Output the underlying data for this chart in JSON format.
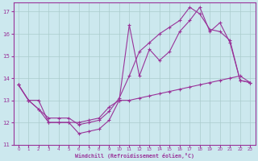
{
  "xlabel": "Windchill (Refroidissement éolien,°C)",
  "bg_color": "#cce8ee",
  "grid_color": "#aacccc",
  "line_color": "#993399",
  "spine_color": "#993399",
  "xlim": [
    -0.5,
    23.5
  ],
  "ylim": [
    11,
    17.4
  ],
  "xticks": [
    0,
    1,
    2,
    3,
    4,
    5,
    6,
    7,
    8,
    9,
    10,
    11,
    12,
    13,
    14,
    15,
    16,
    17,
    18,
    19,
    20,
    21,
    22,
    23
  ],
  "yticks": [
    11,
    12,
    13,
    14,
    15,
    16,
    17
  ],
  "line1_x": [
    0,
    1,
    2,
    3,
    4,
    5,
    6,
    7,
    8,
    9,
    10,
    11,
    12,
    13,
    14,
    15,
    16,
    17,
    18,
    19,
    20,
    21,
    22,
    23
  ],
  "line1_y": [
    13.7,
    13.0,
    12.6,
    12.0,
    12.0,
    12.0,
    11.5,
    11.6,
    11.7,
    12.1,
    13.0,
    16.4,
    14.1,
    15.3,
    14.8,
    15.2,
    16.1,
    16.6,
    17.2,
    16.1,
    16.5,
    15.6,
    13.9,
    13.8
  ],
  "line2_x": [
    0,
    1,
    2,
    3,
    4,
    5,
    6,
    7,
    8,
    9,
    10,
    11,
    12,
    13,
    14,
    15,
    16,
    17,
    18,
    19,
    20,
    21,
    22,
    23
  ],
  "line2_y": [
    13.7,
    13.0,
    13.0,
    12.0,
    12.0,
    12.0,
    12.0,
    12.1,
    12.2,
    12.7,
    13.0,
    13.0,
    13.1,
    13.2,
    13.3,
    13.4,
    13.5,
    13.6,
    13.7,
    13.8,
    13.9,
    14.0,
    14.1,
    13.8
  ],
  "line3_x": [
    0,
    1,
    2,
    3,
    4,
    5,
    6,
    7,
    8,
    9,
    10,
    11,
    12,
    13,
    14,
    15,
    16,
    17,
    18,
    19,
    20,
    21,
    22,
    23
  ],
  "line3_y": [
    13.7,
    13.0,
    12.6,
    12.2,
    12.2,
    12.2,
    11.9,
    12.0,
    12.1,
    12.5,
    13.1,
    14.1,
    15.2,
    15.6,
    16.0,
    16.3,
    16.6,
    17.2,
    16.9,
    16.2,
    16.1,
    15.7,
    13.9,
    13.8
  ]
}
